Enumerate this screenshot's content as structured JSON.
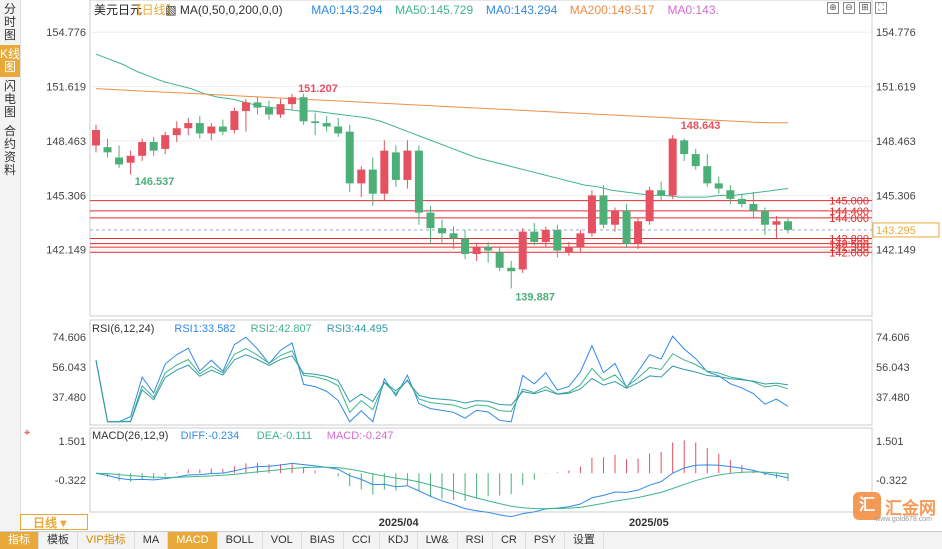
{
  "sidebar": {
    "tabs": [
      "分时图",
      "K线图",
      "闪电图",
      "合约资料"
    ],
    "active": 1
  },
  "header": {
    "symbol": "美元日元",
    "period_tag": "【日线】",
    "ma_label": "MA(0,50,0,200,0,0)",
    "ma0a": "MA0:143.294",
    "ma50": "MA50:145.729",
    "ma0b": "MA0:143.294",
    "ma200": "MA200:149.517",
    "ma0c": "MA0:143."
  },
  "colors": {
    "up": "#e55160",
    "down": "#4caf78",
    "ma50": "#3fb58b",
    "ma200": "#ef8e47",
    "rsi1": "#2f8ae8",
    "rsi2": "#3fb58b",
    "rsi3": "#2f9ba8",
    "hline": "#e02d2d",
    "accent": "#e8a93a"
  },
  "main_axis_ticks": [
    "154.776",
    "151.619",
    "148.463",
    "145.306",
    "142.149"
  ],
  "annotations": {
    "high1": "151.207",
    "low1": "146.537",
    "low2": "139.887",
    "high2": "148.643"
  },
  "hlines": [
    {
      "value": 145.0,
      "label": "145.000"
    },
    {
      "value": 144.4,
      "label": "144.400"
    },
    {
      "value": 144.0,
      "label": "144.000"
    },
    {
      "value": 142.8,
      "label": "142.800"
    },
    {
      "value": 142.5,
      "label": "142.500"
    },
    {
      "value": 142.3,
      "label": "142.300"
    },
    {
      "value": 142.0,
      "label": "142.000"
    }
  ],
  "last_price": "143.295",
  "x_dates": [
    "2025/04",
    "2025/05"
  ],
  "rsi": {
    "title": "RSI(6,12,24)",
    "rsi1": "RSI1:33.582",
    "rsi2": "RSI2:42.807",
    "rsi3": "RSI3:44.495",
    "ticks": [
      "74.606",
      "56.043",
      "37.480"
    ]
  },
  "macd": {
    "title": "MACD(26,12,9)",
    "diff": "DIFF:-0.234",
    "dea": "DEA:-0.111",
    "macd": "MACD:-0.247",
    "ticks": [
      "1.501",
      "-0.322"
    ]
  },
  "period_select": "日线",
  "bottom_tabs": [
    "指标",
    "模板",
    "VIP指标",
    "MA",
    "MACD",
    "BOLL",
    "VOL",
    "BIAS",
    "CCI",
    "KDJ",
    "LW&",
    "RSI",
    "CR",
    "PSY",
    "设置"
  ],
  "bottom_active": "MACD",
  "watermark": {
    "text": "汇金网",
    "logo": "汇",
    "url": "www.gold678.com"
  },
  "chart_data": {
    "type": "candlestick",
    "title": "美元日元 日线",
    "ylim": [
      138.3,
      155.6
    ],
    "ohlc": [
      [
        148.2,
        149.4,
        147.8,
        149.1
      ],
      [
        148.1,
        148.6,
        147.5,
        147.8
      ],
      [
        147.5,
        148.2,
        146.9,
        147.1
      ],
      [
        147.2,
        147.9,
        146.5,
        147.6
      ],
      [
        147.6,
        148.6,
        147.3,
        148.4
      ],
      [
        148.4,
        148.7,
        147.6,
        147.9
      ],
      [
        148.0,
        149.0,
        147.7,
        148.8
      ],
      [
        148.8,
        149.6,
        148.4,
        149.2
      ],
      [
        149.2,
        149.8,
        148.8,
        149.5
      ],
      [
        149.5,
        149.9,
        148.6,
        148.9
      ],
      [
        148.9,
        149.5,
        148.5,
        149.3
      ],
      [
        149.3,
        149.7,
        148.8,
        149.0
      ],
      [
        149.1,
        150.4,
        148.9,
        150.2
      ],
      [
        150.2,
        150.9,
        149.0,
        150.7
      ],
      [
        150.7,
        151.0,
        150.0,
        150.4
      ],
      [
        150.4,
        150.8,
        149.7,
        150.0
      ],
      [
        150.0,
        150.9,
        149.8,
        150.6
      ],
      [
        150.6,
        151.2,
        150.3,
        151.0
      ],
      [
        151.0,
        151.2,
        149.4,
        149.6
      ],
      [
        149.6,
        150.1,
        148.8,
        149.5
      ],
      [
        149.5,
        149.9,
        149.0,
        149.3
      ],
      [
        149.3,
        149.8,
        148.7,
        148.9
      ],
      [
        149.0,
        149.4,
        145.5,
        146.0
      ],
      [
        146.0,
        147.0,
        145.2,
        146.8
      ],
      [
        146.8,
        147.5,
        144.7,
        145.4
      ],
      [
        145.4,
        148.5,
        145.0,
        147.9
      ],
      [
        147.8,
        148.2,
        145.8,
        146.2
      ],
      [
        146.2,
        148.5,
        145.7,
        147.9
      ],
      [
        147.9,
        148.2,
        143.6,
        144.3
      ],
      [
        144.3,
        144.7,
        142.5,
        143.4
      ],
      [
        143.4,
        143.9,
        142.5,
        143.1
      ],
      [
        143.1,
        143.5,
        142.2,
        142.8
      ],
      [
        142.8,
        143.3,
        141.6,
        141.9
      ],
      [
        141.9,
        142.5,
        141.5,
        142.3
      ],
      [
        142.3,
        142.6,
        141.4,
        142.1
      ],
      [
        142.0,
        142.3,
        140.9,
        141.1
      ],
      [
        141.1,
        141.5,
        139.9,
        140.9
      ],
      [
        141.0,
        143.4,
        140.8,
        143.2
      ],
      [
        143.2,
        143.7,
        142.4,
        142.6
      ],
      [
        142.6,
        143.5,
        142.3,
        143.3
      ],
      [
        143.3,
        143.6,
        141.7,
        142.1
      ],
      [
        142.0,
        142.6,
        141.8,
        142.3
      ],
      [
        142.3,
        143.3,
        142.0,
        143.1
      ],
      [
        143.1,
        145.6,
        142.9,
        145.3
      ],
      [
        145.3,
        145.9,
        143.4,
        143.6
      ],
      [
        143.6,
        144.6,
        143.2,
        144.4
      ],
      [
        144.4,
        144.8,
        142.3,
        142.5
      ],
      [
        142.5,
        144.0,
        142.2,
        143.8
      ],
      [
        143.8,
        145.8,
        143.6,
        145.6
      ],
      [
        145.6,
        146.1,
        145.0,
        145.3
      ],
      [
        145.3,
        148.8,
        145.1,
        148.6
      ],
      [
        148.5,
        148.6,
        147.3,
        147.7
      ],
      [
        147.7,
        148.0,
        146.8,
        147.0
      ],
      [
        147.0,
        147.7,
        145.8,
        146.0
      ],
      [
        146.0,
        146.4,
        145.4,
        145.7
      ],
      [
        145.6,
        145.9,
        144.8,
        145.1
      ],
      [
        145.1,
        145.4,
        144.6,
        144.8
      ],
      [
        144.8,
        145.5,
        144.0,
        144.4
      ],
      [
        144.4,
        144.6,
        143.0,
        143.6
      ],
      [
        143.6,
        144.1,
        142.8,
        143.8
      ],
      [
        143.8,
        144.0,
        143.1,
        143.3
      ]
    ],
    "ma50": [
      153.5,
      153.2,
      152.9,
      152.5,
      152.2,
      151.9,
      151.7,
      151.5,
      151.2,
      151.0,
      150.9,
      150.7,
      150.5,
      150.4,
      150.3,
      150.2,
      150.2,
      150.1,
      150.0,
      149.9,
      149.8,
      149.6,
      149.3,
      149.0,
      148.7,
      148.4,
      148.1,
      147.8,
      147.5,
      147.3,
      147.1,
      146.9,
      146.7,
      146.5,
      146.3,
      146.1,
      145.9,
      145.8,
      145.6,
      145.5,
      145.4,
      145.3,
      145.3,
      145.2,
      145.2,
      145.2,
      145.3,
      145.3,
      145.4,
      145.5,
      145.6,
      145.7
    ],
    "ma200": [
      151.5,
      151.45,
      151.4,
      151.35,
      151.3,
      151.25,
      151.2,
      151.15,
      151.1,
      151.05,
      151.0,
      150.95,
      150.9,
      150.85,
      150.8,
      150.75,
      150.7,
      150.65,
      150.6,
      150.55,
      150.5,
      150.45,
      150.4,
      150.35,
      150.3,
      150.25,
      150.2,
      150.15,
      150.1,
      150.05,
      150.0,
      149.95,
      149.9,
      149.85,
      149.8,
      149.75,
      149.7,
      149.65,
      149.6,
      149.55,
      149.52,
      149.52
    ]
  }
}
